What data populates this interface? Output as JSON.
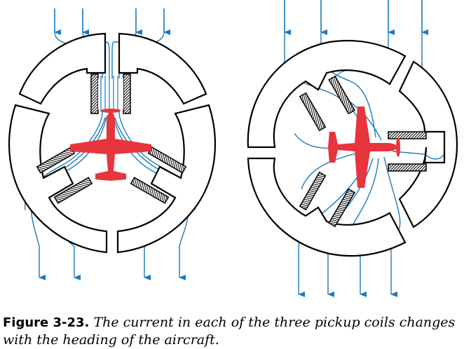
{
  "figure": {
    "label": "Figure 3-23.",
    "caption": "The current in each of the three pickup coils changes with the heading of the aircraft."
  },
  "colors": {
    "flux": "#1a7bbf",
    "ring": "#000000",
    "aircraft": "#e8343c",
    "background": "#ffffff"
  },
  "icons": [
    "airplane-icon",
    "arrow-down-icon",
    "coil-icon"
  ]
}
